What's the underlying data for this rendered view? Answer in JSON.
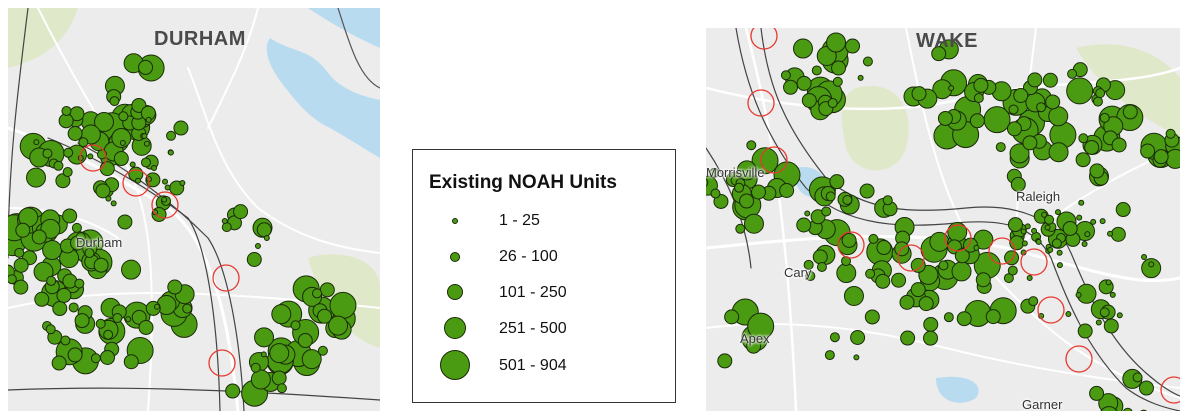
{
  "maps": {
    "durham": {
      "county_label": "DURHAM",
      "city_labels": [
        "Durham"
      ]
    },
    "wake": {
      "county_label": "WAKE",
      "city_labels": [
        "Morrisville",
        "Raleigh",
        "Cary",
        "Apex",
        "Garner"
      ]
    }
  },
  "legend": {
    "title": "Existing NOAH Units",
    "classes": [
      {
        "label": "1 - 25"
      },
      {
        "label": "26 - 100"
      },
      {
        "label": "101 - 250"
      },
      {
        "label": "251 - 500"
      },
      {
        "label": "501 - 904"
      }
    ]
  },
  "colors": {
    "symbol_fill": "#4a9a12",
    "symbol_stroke": "#1a2a08",
    "highlight_ring": "#e8392f",
    "water": "#b9dbf0",
    "park": "#dfe8c8",
    "background": "#ececec"
  }
}
